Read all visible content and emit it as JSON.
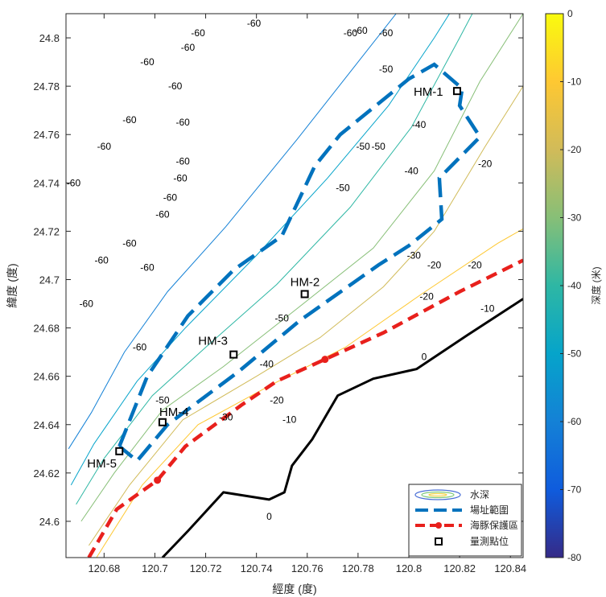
{
  "chart_data": {
    "type": "contour",
    "xlabel": "經度 (度)",
    "ylabel": "緯度 (度)",
    "xlim": [
      120.665,
      120.845
    ],
    "ylim": [
      24.585,
      24.81
    ],
    "xticks": [
      120.68,
      120.7,
      120.72,
      120.74,
      120.76,
      120.78,
      120.8,
      120.82,
      120.84
    ],
    "yticks": [
      24.6,
      24.62,
      24.64,
      24.66,
      24.68,
      24.7,
      24.72,
      24.74,
      24.76,
      24.78,
      24.8
    ],
    "colorbar": {
      "label": "深度 (米)",
      "range": [
        -80,
        0
      ],
      "ticks": [
        0,
        -10,
        -20,
        -30,
        -40,
        -50,
        -60,
        -70,
        -80
      ],
      "colormap": "parula"
    },
    "contour_levels": [
      0,
      -10,
      -20,
      -30,
      -40,
      -50,
      -60
    ],
    "contour_labels": [
      {
        "text": "-60",
        "x": 120.739,
        "y": 24.806
      },
      {
        "text": "-60",
        "x": 120.717,
        "y": 24.802
      },
      {
        "text": "-60",
        "x": 120.713,
        "y": 24.796
      },
      {
        "text": "-60",
        "x": 120.697,
        "y": 24.79
      },
      {
        "text": "-60",
        "x": 120.708,
        "y": 24.78
      },
      {
        "text": "-60",
        "x": 120.781,
        "y": 24.803
      },
      {
        "text": "-60",
        "x": 120.777,
        "y": 24.802
      },
      {
        "text": "-60",
        "x": 120.791,
        "y": 24.802
      },
      {
        "text": "-60",
        "x": 120.69,
        "y": 24.766
      },
      {
        "text": "-60",
        "x": 120.711,
        "y": 24.765
      },
      {
        "text": "-60",
        "x": 120.68,
        "y": 24.755
      },
      {
        "text": "-60",
        "x": 120.711,
        "y": 24.749
      },
      {
        "text": "-60",
        "x": 120.668,
        "y": 24.74
      },
      {
        "text": "-60",
        "x": 120.71,
        "y": 24.742
      },
      {
        "text": "-60",
        "x": 120.706,
        "y": 24.734
      },
      {
        "text": "-60",
        "x": 120.703,
        "y": 24.727
      },
      {
        "text": "-60",
        "x": 120.69,
        "y": 24.715
      },
      {
        "text": "-60",
        "x": 120.679,
        "y": 24.708
      },
      {
        "text": "-60",
        "x": 120.697,
        "y": 24.705
      },
      {
        "text": "-60",
        "x": 120.673,
        "y": 24.69
      },
      {
        "text": "-60",
        "x": 120.694,
        "y": 24.672
      },
      {
        "text": "-50",
        "x": 120.791,
        "y": 24.787
      },
      {
        "text": "-50",
        "x": 120.782,
        "y": 24.755
      },
      {
        "text": "-50",
        "x": 120.788,
        "y": 24.755
      },
      {
        "text": "-50",
        "x": 120.774,
        "y": 24.738
      },
      {
        "text": "-50",
        "x": 120.75,
        "y": 24.684
      },
      {
        "text": "-50",
        "x": 120.703,
        "y": 24.65
      },
      {
        "text": "-40",
        "x": 120.804,
        "y": 24.764
      },
      {
        "text": "-40",
        "x": 120.801,
        "y": 24.745
      },
      {
        "text": "-40",
        "x": 120.744,
        "y": 24.665
      },
      {
        "text": "-30",
        "x": 120.802,
        "y": 24.71
      },
      {
        "text": "-30",
        "x": 120.728,
        "y": 24.643
      },
      {
        "text": "-20",
        "x": 120.83,
        "y": 24.748
      },
      {
        "text": "-20",
        "x": 120.81,
        "y": 24.706
      },
      {
        "text": "-20",
        "x": 120.826,
        "y": 24.706
      },
      {
        "text": "-20",
        "x": 120.807,
        "y": 24.693
      },
      {
        "text": "-20",
        "x": 120.748,
        "y": 24.65
      },
      {
        "text": "-10",
        "x": 120.831,
        "y": 24.688
      },
      {
        "text": "-10",
        "x": 120.753,
        "y": 24.642
      },
      {
        "text": "0",
        "x": 120.806,
        "y": 24.668
      },
      {
        "text": "0",
        "x": 120.745,
        "y": 24.602
      }
    ],
    "points": [
      {
        "name": "HM-1",
        "x": 120.819,
        "y": 24.778
      },
      {
        "name": "HM-2",
        "x": 120.759,
        "y": 24.694
      },
      {
        "name": "HM-3",
        "x": 120.731,
        "y": 24.669
      },
      {
        "name": "HM-4",
        "x": 120.703,
        "y": 24.641
      },
      {
        "name": "HM-5",
        "x": 120.686,
        "y": 24.629
      }
    ],
    "site_boundary": [
      [
        120.686,
        24.631
      ],
      [
        120.697,
        24.66
      ],
      [
        120.713,
        24.685
      ],
      [
        120.731,
        24.704
      ],
      [
        120.75,
        24.718
      ],
      [
        120.763,
        24.747
      ],
      [
        120.773,
        24.76
      ],
      [
        120.8,
        24.783
      ],
      [
        120.81,
        24.789
      ],
      [
        120.821,
        24.779
      ],
      [
        120.82,
        24.772
      ],
      [
        120.828,
        24.759
      ],
      [
        120.812,
        24.742
      ],
      [
        120.813,
        24.725
      ],
      [
        120.8,
        24.714
      ],
      [
        120.788,
        24.706
      ],
      [
        120.757,
        24.683
      ],
      [
        120.733,
        24.662
      ],
      [
        120.705,
        24.64
      ],
      [
        120.693,
        24.625
      ],
      [
        120.686,
        24.631
      ]
    ],
    "dolphin_line": [
      [
        120.674,
        24.585
      ],
      [
        120.685,
        24.605
      ],
      [
        120.701,
        24.617
      ],
      [
        120.712,
        24.631
      ],
      [
        120.734,
        24.648
      ],
      [
        120.748,
        24.658
      ],
      [
        120.767,
        24.667
      ],
      [
        120.79,
        24.678
      ],
      [
        120.82,
        24.695
      ],
      [
        120.845,
        24.708
      ]
    ],
    "dolphin_markers": [
      [
        120.701,
        24.617
      ],
      [
        120.767,
        24.667
      ]
    ],
    "coastline": [
      [
        120.703,
        24.585
      ],
      [
        120.713,
        24.596
      ],
      [
        120.727,
        24.612
      ],
      [
        120.745,
        24.609
      ],
      [
        120.751,
        24.612
      ],
      [
        120.754,
        24.623
      ],
      [
        120.762,
        24.634
      ],
      [
        120.772,
        24.652
      ],
      [
        120.786,
        24.659
      ],
      [
        120.803,
        24.663
      ],
      [
        120.823,
        24.677
      ],
      [
        120.845,
        24.692
      ]
    ],
    "contours": [
      {
        "level": -10,
        "points": [
          [
            120.677,
            24.585
          ],
          [
            120.695,
            24.615
          ],
          [
            120.717,
            24.64
          ],
          [
            120.745,
            24.656
          ],
          [
            120.775,
            24.672
          ],
          [
            120.805,
            24.694
          ],
          [
            120.835,
            24.715
          ],
          [
            120.845,
            24.721
          ]
        ]
      },
      {
        "level": -20,
        "points": [
          [
            120.674,
            24.59
          ],
          [
            120.69,
            24.615
          ],
          [
            120.711,
            24.642
          ],
          [
            120.74,
            24.66
          ],
          [
            120.765,
            24.676
          ],
          [
            120.79,
            24.697
          ],
          [
            120.81,
            24.72
          ],
          [
            120.83,
            24.755
          ],
          [
            120.845,
            24.78
          ]
        ]
      },
      {
        "level": -30,
        "points": [
          [
            120.671,
            24.6
          ],
          [
            120.684,
            24.62
          ],
          [
            120.703,
            24.646
          ],
          [
            120.727,
            24.664
          ],
          [
            120.756,
            24.688
          ],
          [
            120.786,
            24.713
          ],
          [
            120.81,
            24.745
          ],
          [
            120.828,
            24.782
          ],
          [
            120.845,
            24.81
          ]
        ]
      },
      {
        "level": -40,
        "points": [
          [
            120.669,
            24.607
          ],
          [
            120.68,
            24.626
          ],
          [
            120.699,
            24.652
          ],
          [
            120.72,
            24.672
          ],
          [
            120.748,
            24.698
          ],
          [
            120.777,
            24.73
          ],
          [
            120.801,
            24.763
          ],
          [
            120.82,
            24.8
          ],
          [
            120.825,
            24.81
          ]
        ]
      },
      {
        "level": -50,
        "points": [
          [
            120.667,
            24.615
          ],
          [
            120.676,
            24.632
          ],
          [
            120.693,
            24.658
          ],
          [
            120.712,
            24.68
          ],
          [
            120.74,
            24.71
          ],
          [
            120.768,
            24.742
          ],
          [
            120.792,
            24.772
          ],
          [
            120.81,
            24.8
          ],
          [
            120.816,
            24.81
          ]
        ]
      },
      {
        "level": -60,
        "points": [
          [
            120.666,
            24.63
          ],
          [
            120.675,
            24.645
          ],
          [
            120.688,
            24.67
          ],
          [
            120.705,
            24.695
          ],
          [
            120.728,
            24.722
          ],
          [
            120.756,
            24.758
          ],
          [
            120.78,
            24.79
          ],
          [
            120.795,
            24.81
          ]
        ]
      }
    ],
    "legend": {
      "entries": [
        "水深",
        "場址範圍",
        "海豚保護區",
        "量測點位"
      ],
      "placement": "bottom-right"
    },
    "colors": {
      "site_boundary": "#0072BD",
      "dolphin_line": "#E8201C",
      "coastline": "#000000",
      "point_marker": "#000000"
    }
  }
}
